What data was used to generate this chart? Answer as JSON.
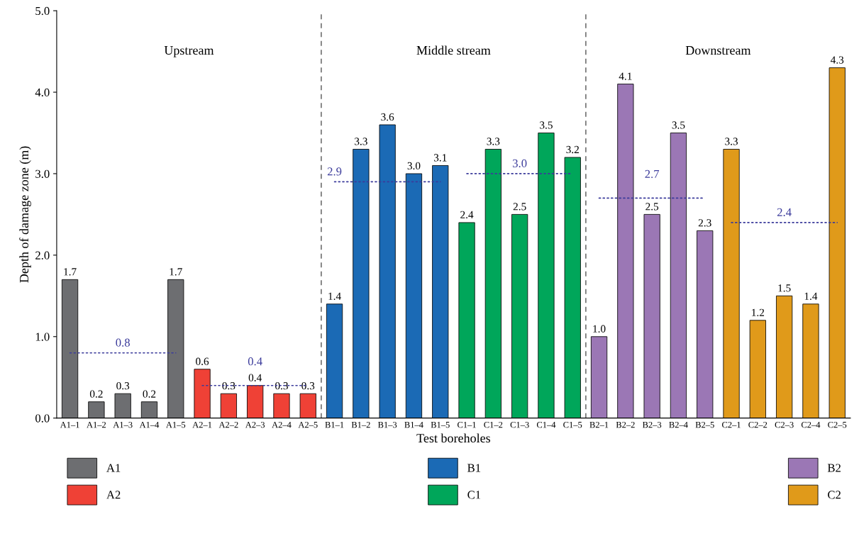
{
  "chart_data": {
    "type": "bar",
    "xlabel": "Test boreholes",
    "ylabel": "Depth of damage zone (m)",
    "categories": [
      "A1–1",
      "A1–2",
      "A1–3",
      "A1–4",
      "A1–5",
      "A2–1",
      "A2–2",
      "A2–3",
      "A2–4",
      "A2–5",
      "B1–1",
      "B1–2",
      "B1–3",
      "B1–4",
      "B1–5",
      "C1–1",
      "C1–2",
      "C1–3",
      "C1–4",
      "C1–5",
      "B2–1",
      "B2–2",
      "B2–3",
      "B2–4",
      "B2–5",
      "C2–1",
      "C2–2",
      "C2–3",
      "C2–4",
      "C2–5"
    ],
    "series": [
      {
        "name": "A1",
        "color": "#6d6e71",
        "values": [
          1.7,
          0.2,
          0.3,
          0.2,
          1.7,
          null,
          null,
          null,
          null,
          null,
          null,
          null,
          null,
          null,
          null,
          null,
          null,
          null,
          null,
          null,
          null,
          null,
          null,
          null,
          null,
          null,
          null,
          null,
          null,
          null
        ],
        "value_labels": [
          "1.7",
          "0.2",
          "0.3",
          "0.2",
          "1.7",
          null,
          null,
          null,
          null,
          null,
          null,
          null,
          null,
          null,
          null,
          null,
          null,
          null,
          null,
          null,
          null,
          null,
          null,
          null,
          null,
          null,
          null,
          null,
          null,
          null
        ]
      },
      {
        "name": "A2",
        "color": "#ef4136",
        "values": [
          null,
          null,
          null,
          null,
          null,
          0.6,
          0.3,
          0.4,
          0.3,
          0.3,
          null,
          null,
          null,
          null,
          null,
          null,
          null,
          null,
          null,
          null,
          null,
          null,
          null,
          null,
          null,
          null,
          null,
          null,
          null,
          null
        ],
        "value_labels": [
          null,
          null,
          null,
          null,
          null,
          "0.6",
          "0.3",
          "0.4",
          "0.3",
          "0.3",
          null,
          null,
          null,
          null,
          null,
          null,
          null,
          null,
          null,
          null,
          null,
          null,
          null,
          null,
          null,
          null,
          null,
          null,
          null,
          null
        ]
      },
      {
        "name": "B1",
        "color": "#1b6ab5",
        "values": [
          null,
          null,
          null,
          null,
          null,
          null,
          null,
          null,
          null,
          null,
          1.4,
          3.3,
          3.6,
          3.0,
          3.1,
          null,
          null,
          null,
          null,
          null,
          null,
          null,
          null,
          null,
          null,
          null,
          null,
          null,
          null,
          null
        ],
        "value_labels": [
          null,
          null,
          null,
          null,
          null,
          null,
          null,
          null,
          null,
          null,
          "1.4",
          "3.3",
          "3.6",
          "3.0",
          "3.1",
          null,
          null,
          null,
          null,
          null,
          null,
          null,
          null,
          null,
          null,
          null,
          null,
          null,
          null,
          null
        ]
      },
      {
        "name": "C1",
        "color": "#00a65a",
        "values": [
          null,
          null,
          null,
          null,
          null,
          null,
          null,
          null,
          null,
          null,
          null,
          null,
          null,
          null,
          null,
          2.4,
          3.3,
          2.5,
          3.5,
          3.2,
          null,
          null,
          null,
          null,
          null,
          null,
          null,
          null,
          null,
          null
        ],
        "value_labels": [
          null,
          null,
          null,
          null,
          null,
          null,
          null,
          null,
          null,
          null,
          null,
          null,
          null,
          null,
          null,
          "2.4",
          "3.3",
          "2.5",
          "3.5",
          "3.2",
          null,
          null,
          null,
          null,
          null,
          null,
          null,
          null,
          null,
          null
        ]
      },
      {
        "name": "B2",
        "color": "#9b77b5",
        "values": [
          null,
          null,
          null,
          null,
          null,
          null,
          null,
          null,
          null,
          null,
          null,
          null,
          null,
          null,
          null,
          null,
          null,
          null,
          null,
          null,
          1.0,
          4.1,
          2.5,
          3.5,
          2.3,
          null,
          null,
          null,
          null,
          null
        ],
        "value_labels": [
          null,
          null,
          null,
          null,
          null,
          null,
          null,
          null,
          null,
          null,
          null,
          null,
          null,
          null,
          null,
          null,
          null,
          null,
          null,
          null,
          "1.0",
          "4.1",
          "2.5",
          "3.5",
          "2.3",
          null,
          null,
          null,
          null,
          null
        ]
      },
      {
        "name": "C2",
        "color": "#e09a1a",
        "values": [
          null,
          null,
          null,
          null,
          null,
          null,
          null,
          null,
          null,
          null,
          null,
          null,
          null,
          null,
          null,
          null,
          null,
          null,
          null,
          null,
          null,
          null,
          null,
          null,
          null,
          3.3,
          1.2,
          1.5,
          1.4,
          4.3
        ],
        "value_labels": [
          null,
          null,
          null,
          null,
          null,
          null,
          null,
          null,
          null,
          null,
          null,
          null,
          null,
          null,
          null,
          null,
          null,
          null,
          null,
          null,
          null,
          null,
          null,
          null,
          null,
          "3.3",
          "1.2",
          "1.5",
          "1.4",
          "4.3"
        ]
      },
      {
        "type": "line",
        "color": "#3b3b9b",
        "line_style": "dotted",
        "values": [
          0.8,
          0.8,
          0.8,
          0.8,
          0.8,
          null,
          null,
          null,
          null,
          null,
          null,
          null,
          null,
          null,
          null,
          null,
          null,
          null,
          null,
          null,
          null,
          null,
          null,
          null,
          null,
          null,
          null,
          null,
          null,
          null
        ]
      },
      {
        "type": "line",
        "color": "#3b3b9b",
        "line_style": "dotted",
        "values": [
          null,
          null,
          null,
          null,
          null,
          0.4,
          0.4,
          0.4,
          0.4,
          0.4,
          null,
          null,
          null,
          null,
          null,
          null,
          null,
          null,
          null,
          null,
          null,
          null,
          null,
          null,
          null,
          null,
          null,
          null,
          null,
          null
        ]
      },
      {
        "type": "line",
        "color": "#3b3b9b",
        "line_style": "dotted",
        "values": [
          null,
          null,
          null,
          null,
          null,
          null,
          null,
          null,
          null,
          null,
          2.9,
          2.9,
          2.9,
          2.9,
          2.9,
          null,
          null,
          null,
          null,
          null,
          null,
          null,
          null,
          null,
          null,
          null,
          null,
          null,
          null,
          null
        ]
      },
      {
        "type": "line",
        "color": "#3b3b9b",
        "line_style": "dotted",
        "values": [
          null,
          null,
          null,
          null,
          null,
          null,
          null,
          null,
          null,
          null,
          null,
          null,
          null,
          null,
          null,
          3.0,
          3.0,
          3.0,
          3.0,
          3.0,
          null,
          null,
          null,
          null,
          null,
          null,
          null,
          null,
          null,
          null
        ]
      },
      {
        "type": "line",
        "color": "#3b3b9b",
        "line_style": "dotted",
        "values": [
          null,
          null,
          null,
          null,
          null,
          null,
          null,
          null,
          null,
          null,
          null,
          null,
          null,
          null,
          null,
          null,
          null,
          null,
          null,
          null,
          2.7,
          2.7,
          2.7,
          2.7,
          2.7,
          null,
          null,
          null,
          null,
          null
        ]
      },
      {
        "type": "line",
        "color": "#3b3b9b",
        "line_style": "dotted",
        "values": [
          null,
          null,
          null,
          null,
          null,
          null,
          null,
          null,
          null,
          null,
          null,
          null,
          null,
          null,
          null,
          null,
          null,
          null,
          null,
          null,
          null,
          null,
          null,
          null,
          null,
          2.4,
          2.4,
          2.4,
          2.4,
          2.4
        ]
      }
    ],
    "annotations": [
      "Upstream",
      "Middle stream",
      "Downstream",
      {
        "text": "0.8",
        "x": "A1–3",
        "y": 0.8
      },
      {
        "text": "0.4",
        "x": "A2–3",
        "y": 0.4
      },
      {
        "text": "2.9",
        "x": "B1–1",
        "y": 2.9
      },
      {
        "text": "3.0",
        "x": "C1–3",
        "y": 3.0
      },
      {
        "text": "2.7",
        "x": "B2–3",
        "y": 2.7
      },
      {
        "text": "2.4",
        "x": "C2–3",
        "y": 2.4
      }
    ],
    "ylim": [
      0,
      5
    ],
    "yticks": [
      {
        "value": 0,
        "label": "0.0"
      },
      {
        "value": 1,
        "label": "1.0"
      },
      {
        "value": 2,
        "label": "2.0"
      },
      {
        "value": 3,
        "label": "3.0"
      },
      {
        "value": 4,
        "label": "4.0"
      },
      {
        "value": 5,
        "label": "5.0"
      }
    ],
    "legend": "bottom"
  }
}
